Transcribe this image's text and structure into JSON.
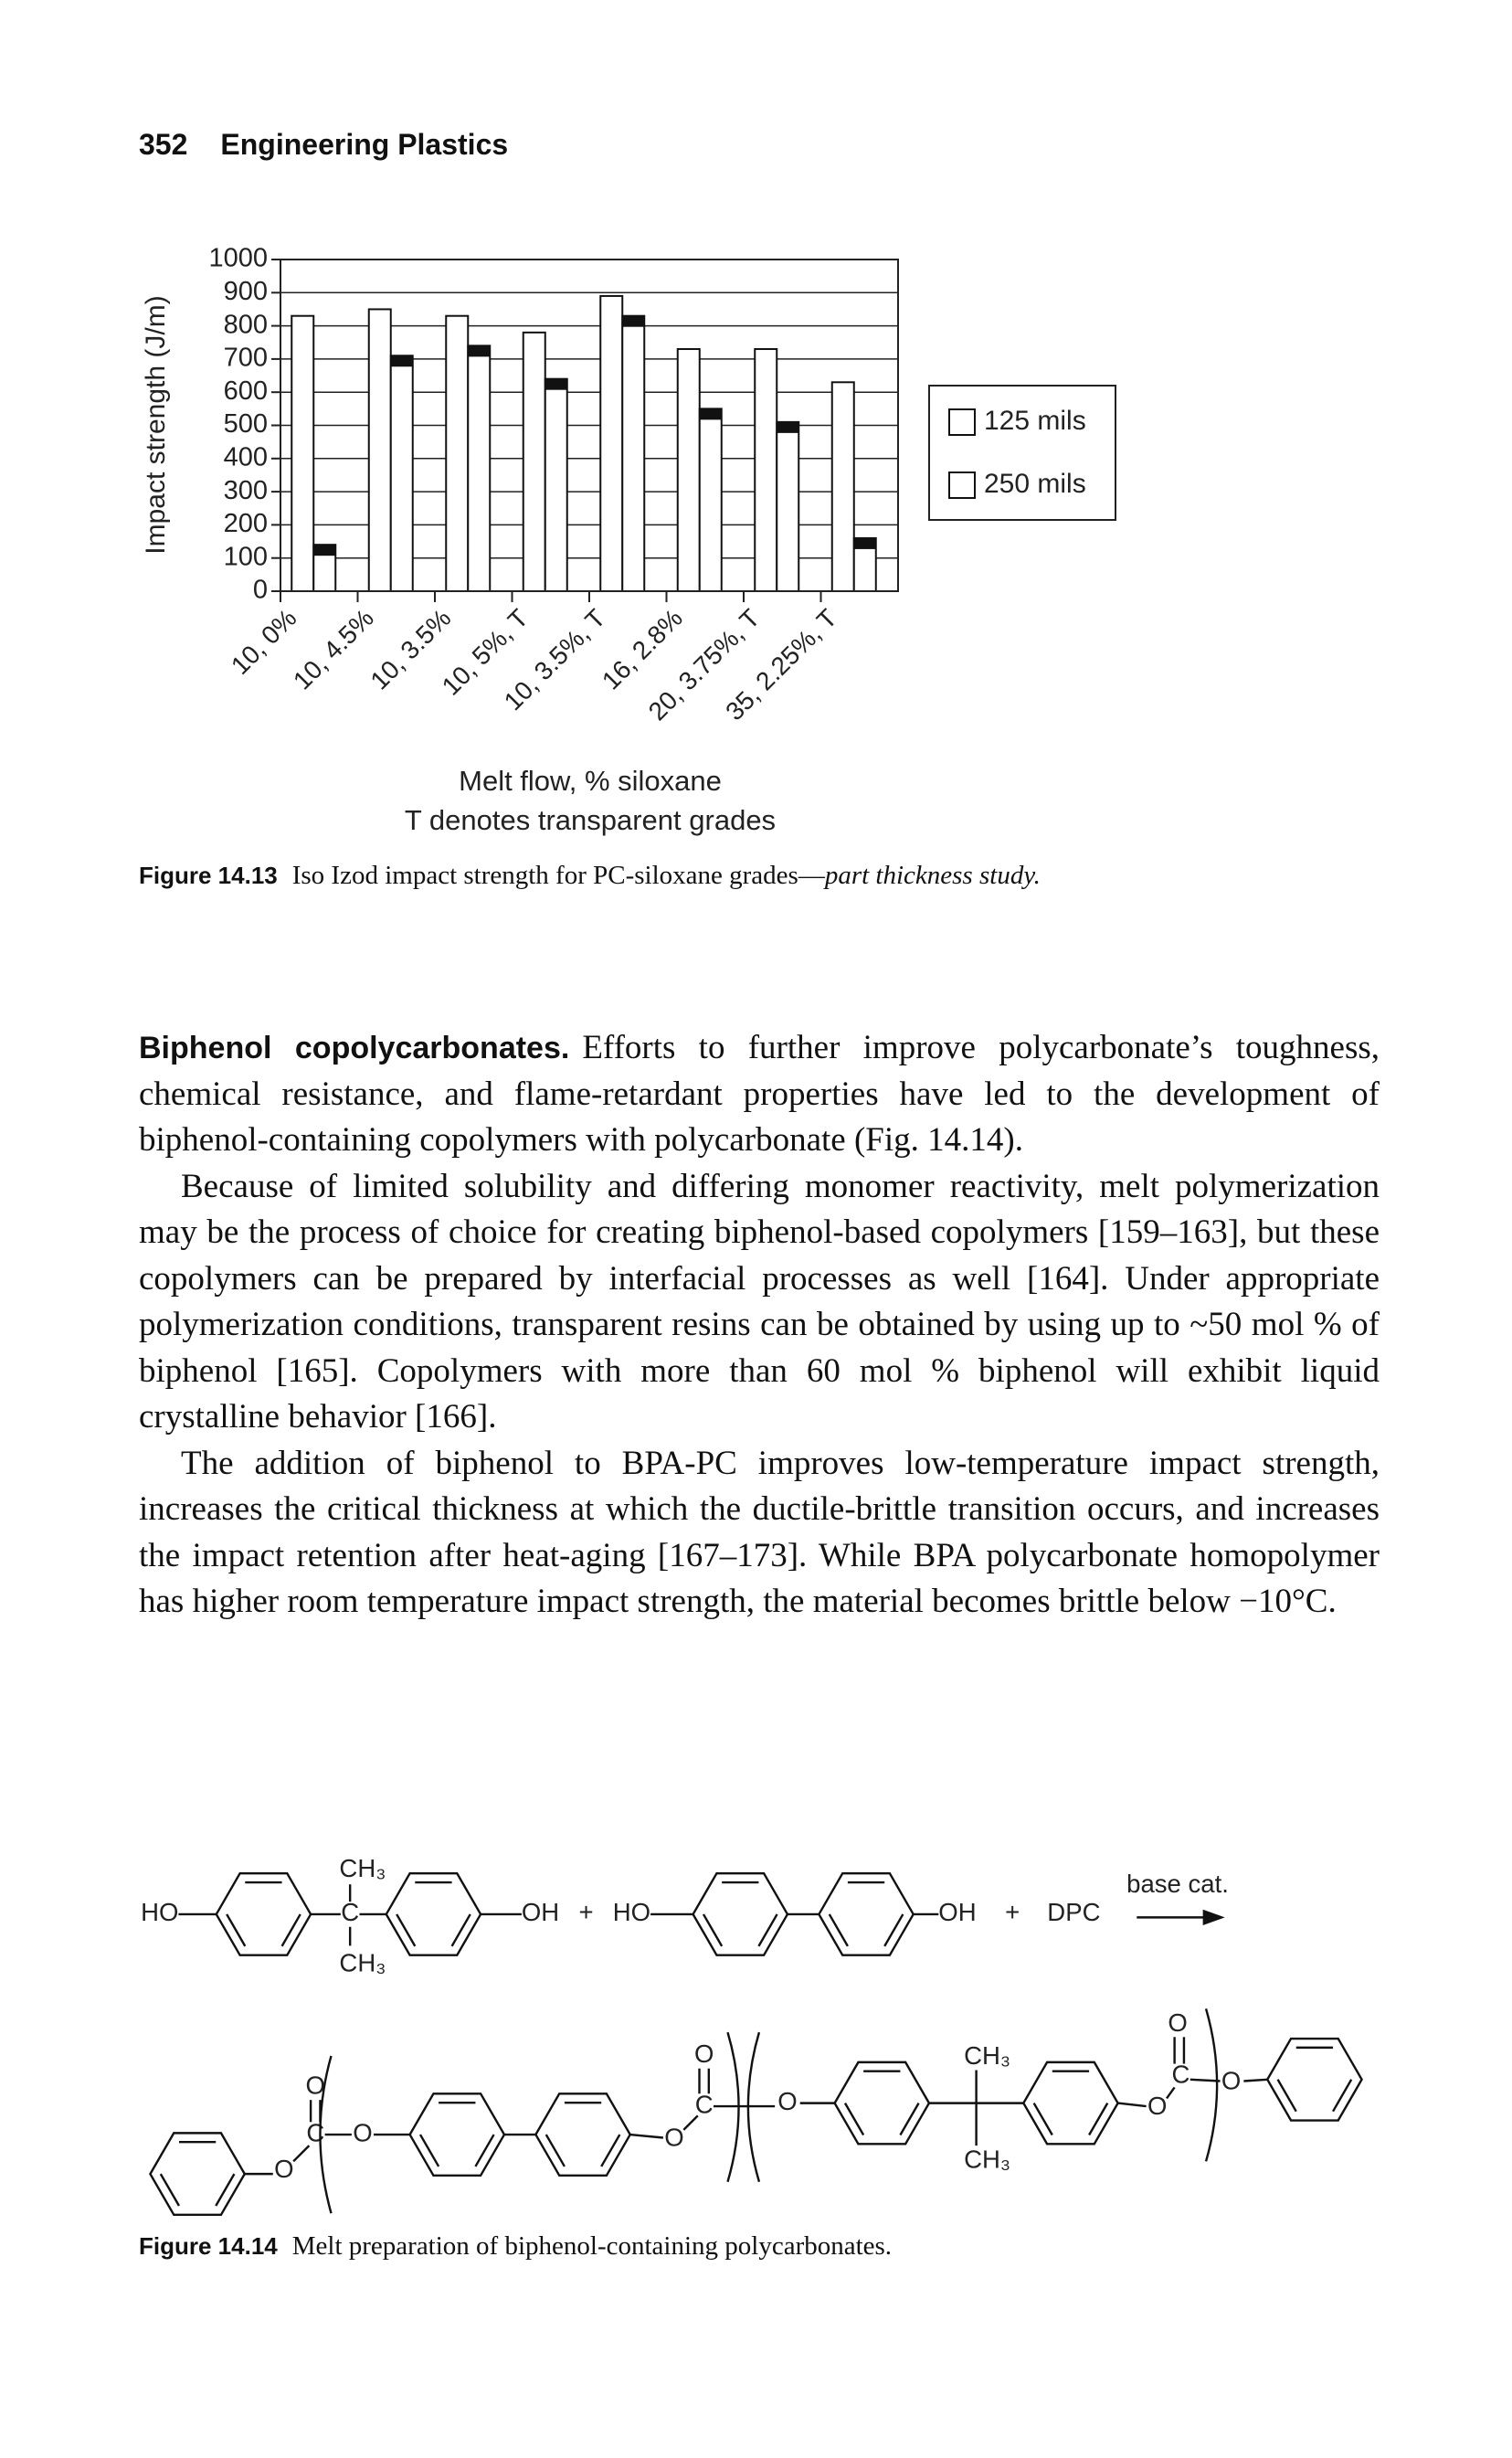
{
  "header": {
    "page_number": "352",
    "title": "Engineering Plastics"
  },
  "chart_data": {
    "type": "bar",
    "y_label": "Impact strength (J/m)",
    "x_label": "Melt flow, % siloxane",
    "note": "T denotes transparent grades",
    "categories": [
      "10, 0%",
      "10, 4.5%",
      "10, 3.5%",
      "10, 5%, T",
      "10, 3.5%, T",
      "16, 2.8%",
      "20, 3.75%, T",
      "35, 2.25%, T"
    ],
    "series": [
      {
        "name": "125 mils",
        "color": "#ffffff",
        "values": [
          830,
          850,
          830,
          780,
          890,
          730,
          730,
          630
        ]
      },
      {
        "name": "250 mils",
        "color": "#ffffff",
        "values": [
          140,
          710,
          740,
          640,
          830,
          550,
          510,
          160
        ]
      }
    ],
    "ylim": [
      0,
      1000
    ],
    "yticks": [
      0,
      100,
      200,
      300,
      400,
      500,
      600,
      700,
      800,
      900,
      1000
    ],
    "grid": true,
    "legend": "right"
  },
  "figure_13_caption": {
    "label": "Figure 14.13",
    "text": "Iso Izod impact strength for PC-siloxane grades—",
    "emphasis": "part thickness study."
  },
  "body": {
    "paragraphs": [
      {
        "heading": "Biphenol copolycarbonates.",
        "text": "Efforts to further improve polycarbonate’s toughness, chemical resistance, and flame-retardant properties have led to the development of biphenol-containing copolymers with polycarbonate (Fig. 14.14)."
      },
      {
        "text": "Because of limited solubility and differing monomer reactivity, melt polymerization may be the process of choice for creating biphenol-based copolymers [159–163], but these copolymers can be prepared by interfacial processes as well [164]. Under appropriate polymerization conditions, transparent resins can be obtained by using up to ~50 mol % of biphenol [165]. Copolymers with more than 60 mol % biphenol will exhibit liquid crystalline behavior [166]."
      },
      {
        "text": "The addition of biphenol to BPA-PC improves low-temperature impact strength, increases the critical thickness at which the ductile-brittle transition occurs, and increases the impact retention after heat-aging [167–173]. While BPA polycarbonate homopolymer has higher room temperature impact strength, the material becomes brittle below −10°C."
      }
    ]
  },
  "scheme": {
    "reactants": [
      "HO",
      "CH₃",
      "C",
      "CH₃",
      "OH",
      "+",
      "HO",
      "OH",
      "+",
      "DPC"
    ],
    "condition": "base cat.",
    "product": [
      "O",
      "O",
      "C",
      "O",
      "O",
      "O",
      "C",
      "O",
      "CH₃",
      "CH₃",
      "O",
      "O",
      "C",
      "O"
    ]
  },
  "figure_14_caption": {
    "label": "Figure 14.14",
    "text": "Melt preparation of biphenol-containing polycarbonates."
  }
}
